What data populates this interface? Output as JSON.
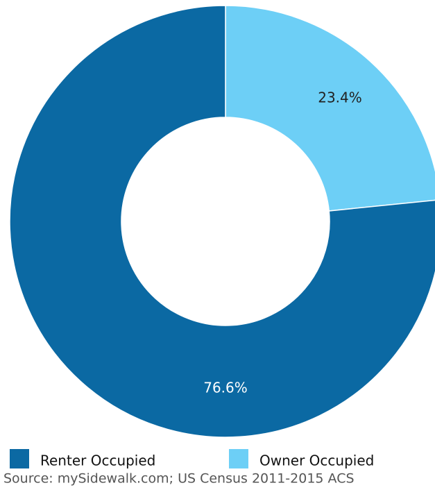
{
  "chart_data": {
    "type": "donut",
    "categories": [
      "Renter Occupied",
      "Owner Occupied"
    ],
    "values": [
      76.6,
      23.4
    ],
    "value_labels": [
      "76.6%",
      "23.4%"
    ],
    "colors": [
      "#0b69a3",
      "#6dcff6"
    ],
    "source": "Source: mySidewalk.com; US Census 2011-2015 ACS"
  }
}
